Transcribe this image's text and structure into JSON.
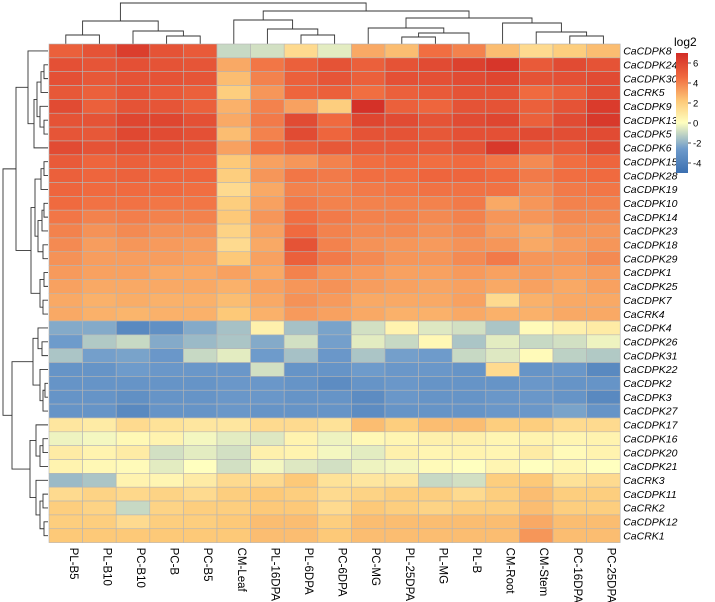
{
  "chart_data": {
    "type": "heatmap",
    "columns": [
      "PL-B5",
      "PL-B10",
      "PC-B10",
      "PC-B",
      "PC-B5",
      "CM-Leaf",
      "PL-16DPA",
      "PL-6DPA",
      "PC-6DPA",
      "PC-MG",
      "PL-25DPA",
      "PL-MG",
      "PL-B",
      "CM-Root",
      "CM-Stem",
      "PC-16DPA",
      "PC-25DPA"
    ],
    "rows": [
      "CaCDPK8",
      "CaCDPK24",
      "CaCDPK30",
      "CaCRK5",
      "CaCDPK9",
      "CaCDPK13",
      "CaCDPK5",
      "CaCDPK6",
      "CaCDPK15",
      "CaCDPK28",
      "CaCDPK19",
      "CaCDPK10",
      "CaCDPK14",
      "CaCDPK23",
      "CaCDPK18",
      "CaCDPK29",
      "CaCDPK1",
      "CaCDPK25",
      "CaCDPK7",
      "CaCRK4",
      "CaCDPK4",
      "CaCDPK26",
      "CaCDPK31",
      "CaCDPK22",
      "CaCDPK2",
      "CaCDPK3",
      "CaCDPK27",
      "CaCDPK17",
      "CaCDPK16",
      "CaCDPK20",
      "CaCDPK21",
      "CaCRK3",
      "CaCDPK11",
      "CaCRK2",
      "CaCDPK12",
      "CaCRK1"
    ],
    "values": [
      [
        5.0,
        5.5,
        6.3,
        5.5,
        5.2,
        -1.0,
        -0.8,
        1.5,
        -0.5,
        3.0,
        2.5,
        4.5,
        4.0,
        2.5,
        1.5,
        2.0,
        2.5
      ],
      [
        5.6,
        5.4,
        5.6,
        5.5,
        5.4,
        3.0,
        4.3,
        5.0,
        5.5,
        5.0,
        5.5,
        5.8,
        6.2,
        6.6,
        5.2,
        5.8,
        5.5
      ],
      [
        5.6,
        5.3,
        5.5,
        5.5,
        5.4,
        2.5,
        4.0,
        5.0,
        5.4,
        5.0,
        5.6,
        5.6,
        5.8,
        6.0,
        5.5,
        5.6,
        5.8
      ],
      [
        5.3,
        5.0,
        5.4,
        5.2,
        5.0,
        2.0,
        3.5,
        4.8,
        5.0,
        4.5,
        5.0,
        5.2,
        5.5,
        5.5,
        4.6,
        5.0,
        5.7
      ],
      [
        5.8,
        5.0,
        5.5,
        5.4,
        5.0,
        2.8,
        4.0,
        3.2,
        2.0,
        6.8,
        5.0,
        4.8,
        5.5,
        5.5,
        5.0,
        5.5,
        6.4
      ],
      [
        5.5,
        5.5,
        6.0,
        6.0,
        5.6,
        3.0,
        4.2,
        5.8,
        4.6,
        6.0,
        5.8,
        5.5,
        5.8,
        6.0,
        5.0,
        5.8,
        6.5
      ],
      [
        5.4,
        5.3,
        5.9,
        5.8,
        5.6,
        2.5,
        4.0,
        5.8,
        4.8,
        5.5,
        5.5,
        5.3,
        5.6,
        5.6,
        5.8,
        5.7,
        5.8
      ],
      [
        5.8,
        5.5,
        5.6,
        5.5,
        5.3,
        3.2,
        4.5,
        5.0,
        5.3,
        5.2,
        5.2,
        5.2,
        5.5,
        6.5,
        5.2,
        5.2,
        5.8
      ],
      [
        5.2,
        4.8,
        5.0,
        4.9,
        4.7,
        2.2,
        3.2,
        3.5,
        4.0,
        4.5,
        4.6,
        4.5,
        4.6,
        4.3,
        3.8,
        4.5,
        4.8
      ],
      [
        5.0,
        4.8,
        4.9,
        4.8,
        4.8,
        2.0,
        3.5,
        4.3,
        4.2,
        4.5,
        4.5,
        4.8,
        4.8,
        4.6,
        4.2,
        4.5,
        4.6
      ],
      [
        4.8,
        4.6,
        4.6,
        4.6,
        4.5,
        1.5,
        3.0,
        4.0,
        4.0,
        4.2,
        4.3,
        4.4,
        4.4,
        4.4,
        3.8,
        4.2,
        4.3
      ],
      [
        4.6,
        4.4,
        4.4,
        4.3,
        4.3,
        2.0,
        3.2,
        4.2,
        4.0,
        4.0,
        4.0,
        4.0,
        4.2,
        3.0,
        3.5,
        4.0,
        4.0
      ],
      [
        4.3,
        4.0,
        4.1,
        4.0,
        4.0,
        2.2,
        3.5,
        4.5,
        4.2,
        4.0,
        4.0,
        3.8,
        4.0,
        3.5,
        3.5,
        3.8,
        3.8
      ],
      [
        4.0,
        3.6,
        3.8,
        3.6,
        3.6,
        1.8,
        3.2,
        4.6,
        4.0,
        3.8,
        3.8,
        3.6,
        3.8,
        3.3,
        3.0,
        3.5,
        3.5
      ],
      [
        3.8,
        3.3,
        3.5,
        3.4,
        3.3,
        1.5,
        3.0,
        5.5,
        4.0,
        3.6,
        3.5,
        3.4,
        3.6,
        3.5,
        3.0,
        3.3,
        3.5
      ],
      [
        3.6,
        3.3,
        3.3,
        3.3,
        3.2,
        2.2,
        3.2,
        5.0,
        4.2,
        3.8,
        3.5,
        3.5,
        3.8,
        4.2,
        3.5,
        3.5,
        3.8
      ],
      [
        3.4,
        3.2,
        3.2,
        3.0,
        3.0,
        3.2,
        3.0,
        4.0,
        3.5,
        3.4,
        3.2,
        3.2,
        3.4,
        3.2,
        3.3,
        3.2,
        3.3
      ],
      [
        3.2,
        3.0,
        3.0,
        3.0,
        3.0,
        2.8,
        3.2,
        3.5,
        3.6,
        3.3,
        3.2,
        3.1,
        3.2,
        3.0,
        3.2,
        3.0,
        3.2
      ],
      [
        3.0,
        2.8,
        2.9,
        2.8,
        2.8,
        2.5,
        3.0,
        3.6,
        3.4,
        3.0,
        3.0,
        3.0,
        3.2,
        1.5,
        2.8,
        3.0,
        3.0
      ],
      [
        3.0,
        2.8,
        2.7,
        2.8,
        2.8,
        2.2,
        2.8,
        3.4,
        3.2,
        3.0,
        2.8,
        2.8,
        3.0,
        2.8,
        2.8,
        3.0,
        3.0
      ],
      [
        -2.2,
        -2.2,
        -3.6,
        -3.2,
        -2.2,
        -1.6,
        0.6,
        -1.6,
        -2.4,
        -0.8,
        0.5,
        -0.6,
        -0.8,
        -1.5,
        0.2,
        0.6,
        0.8
      ],
      [
        -2.6,
        -1.4,
        -1.0,
        -2.2,
        -1.8,
        -1.5,
        -2.2,
        -0.8,
        -2.5,
        -0.5,
        -1.0,
        0.3,
        -1.5,
        -0.5,
        -1.0,
        -0.8,
        -0.3
      ],
      [
        -1.5,
        -2.5,
        -2.4,
        -2.8,
        -1.0,
        -0.5,
        -2.6,
        -1.6,
        -2.8,
        -1.5,
        -2.5,
        -2.6,
        -1.0,
        -0.6,
        0.2,
        -1.2,
        -1.4
      ],
      [
        -3.0,
        -3.0,
        -2.6,
        -2.8,
        -2.8,
        -2.8,
        -0.8,
        -3.0,
        -3.0,
        -2.6,
        -2.8,
        -2.8,
        -3.0,
        1.5,
        -3.0,
        -2.8,
        -3.6
      ],
      [
        -3.0,
        -3.0,
        -3.0,
        -3.0,
        -3.0,
        -2.8,
        -2.8,
        -3.0,
        -3.4,
        -3.0,
        -2.8,
        -3.0,
        -3.0,
        -3.0,
        -2.8,
        -3.0,
        -3.0
      ],
      [
        -3.0,
        -3.0,
        -3.2,
        -3.0,
        -3.0,
        -2.8,
        -2.8,
        -3.0,
        -3.0,
        -3.4,
        -2.8,
        -3.0,
        -3.0,
        -2.8,
        -2.8,
        -3.0,
        -3.6
      ],
      [
        -3.0,
        -3.0,
        -3.6,
        -3.0,
        -3.0,
        -2.8,
        -3.0,
        -3.0,
        -3.0,
        -3.4,
        -3.0,
        -3.0,
        -3.0,
        -2.8,
        -2.8,
        -2.4,
        -3.0
      ],
      [
        1.0,
        0.8,
        1.5,
        1.2,
        1.0,
        1.0,
        1.5,
        1.5,
        1.2,
        2.5,
        2.0,
        2.5,
        2.5,
        2.0,
        2.0,
        1.5,
        1.5
      ],
      [
        -0.3,
        -0.2,
        0.3,
        0.5,
        -0.2,
        -0.5,
        -0.6,
        0.5,
        -0.3,
        0.3,
        0.4,
        0.6,
        0.6,
        0.4,
        0.5,
        0.4,
        0.5
      ],
      [
        0.8,
        0.5,
        0.8,
        -0.8,
        -0.5,
        -0.8,
        0.6,
        0.5,
        -0.2,
        -0.5,
        0.6,
        0.4,
        0.5,
        0.4,
        0.8,
        0.2,
        0.5
      ],
      [
        0.5,
        0.3,
        0.2,
        -0.5,
        0.0,
        -0.8,
        -0.2,
        -0.6,
        -0.8,
        -0.3,
        -0.2,
        0.2,
        0.0,
        0.4,
        0.0,
        0.3,
        0.0
      ],
      [
        -1.8,
        -1.5,
        0.5,
        0.4,
        0.8,
        1.5,
        1.5,
        2.2,
        1.2,
        1.0,
        1.0,
        -1.0,
        -0.8,
        2.0,
        2.2,
        1.2,
        1.5
      ],
      [
        1.5,
        1.8,
        1.6,
        1.8,
        1.5,
        2.0,
        2.2,
        2.0,
        1.5,
        1.8,
        2.0,
        2.0,
        1.5,
        2.0,
        2.5,
        2.0,
        2.0
      ],
      [
        2.0,
        1.8,
        -1.0,
        1.8,
        2.0,
        2.0,
        2.2,
        2.2,
        1.5,
        2.2,
        2.0,
        1.8,
        2.0,
        2.0,
        2.5,
        2.0,
        2.0
      ],
      [
        2.0,
        2.0,
        1.5,
        2.0,
        2.0,
        2.2,
        2.5,
        2.5,
        2.0,
        2.5,
        2.5,
        2.5,
        2.5,
        2.5,
        3.0,
        2.5,
        2.5
      ],
      [
        2.2,
        2.2,
        2.2,
        2.2,
        2.2,
        2.2,
        2.5,
        2.5,
        2.2,
        2.5,
        2.5,
        2.5,
        2.5,
        2.5,
        3.5,
        2.5,
        2.5
      ]
    ],
    "legend": {
      "title": "log2",
      "ticks": [
        6,
        4,
        2,
        0,
        -2,
        -4
      ]
    },
    "colorscale": [
      "#4575b4",
      "#ffffbf",
      "#d73027"
    ],
    "color_range": [
      -5,
      7
    ],
    "legend_placement": "right"
  }
}
